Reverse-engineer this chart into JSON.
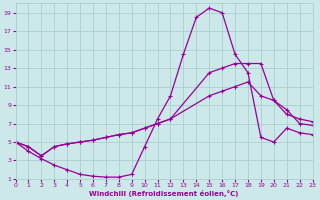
{
  "xlabel": "Windchill (Refroidissement éolien,°C)",
  "ylabel": "",
  "bg_color": "#cce8e8",
  "grid_color": "#aacfcf",
  "line_color": "#990099",
  "xlim": [
    0,
    23
  ],
  "ylim": [
    1,
    20
  ],
  "xticks": [
    0,
    1,
    2,
    3,
    4,
    5,
    6,
    7,
    8,
    9,
    10,
    11,
    12,
    13,
    14,
    15,
    16,
    17,
    18,
    19,
    20,
    21,
    22,
    23
  ],
  "yticks": [
    1,
    3,
    5,
    7,
    9,
    11,
    13,
    15,
    17,
    19
  ],
  "curve1_x": [
    0,
    1,
    2,
    3,
    4,
    5,
    6,
    7,
    8,
    9,
    10,
    11,
    12,
    13,
    14,
    15,
    16,
    17,
    18,
    19,
    20,
    21,
    22,
    23
  ],
  "curve1_y": [
    5,
    4,
    3.2,
    2.5,
    2.0,
    1.5,
    1.3,
    1.2,
    1.2,
    1.5,
    4.5,
    7.5,
    10.0,
    14.5,
    18.5,
    19.5,
    19.0,
    14.5,
    12.5,
    5.5,
    5.0,
    6.5,
    6.0,
    5.8
  ],
  "curve2_x": [
    0,
    1,
    2,
    3,
    4,
    5,
    6,
    7,
    8,
    9,
    10,
    11,
    12,
    15,
    16,
    17,
    18,
    19,
    20,
    21,
    22,
    23
  ],
  "curve2_y": [
    5,
    4.5,
    3.5,
    4.5,
    4.8,
    5.0,
    5.2,
    5.5,
    5.8,
    6.0,
    6.5,
    7.0,
    7.5,
    10.0,
    10.5,
    11.0,
    11.5,
    10.0,
    9.5,
    8.0,
    7.5,
    7.2
  ],
  "curve3_x": [
    0,
    1,
    2,
    3,
    4,
    5,
    6,
    7,
    8,
    9,
    10,
    11,
    12,
    15,
    16,
    17,
    18,
    19,
    20,
    21,
    22,
    23
  ],
  "curve3_y": [
    5,
    4.5,
    3.5,
    4.5,
    4.8,
    5.0,
    5.2,
    5.5,
    5.8,
    6.0,
    6.5,
    7.0,
    7.5,
    12.5,
    13.0,
    13.5,
    13.5,
    13.5,
    9.5,
    8.5,
    7.0,
    6.8
  ],
  "marker": "+",
  "markersize": 3,
  "markeredgewidth": 0.8,
  "linewidth": 0.9
}
